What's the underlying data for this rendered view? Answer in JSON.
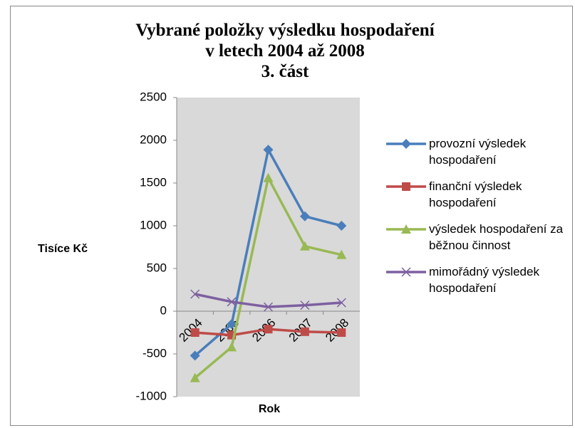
{
  "chart_data": {
    "type": "line",
    "title": "Vybrané položky výsledku hospodaření\nv letech 2004 až 2008\n3. část",
    "y_label": "Tisíce Kč",
    "x_label": "Rok",
    "categories": [
      "2004",
      "2005",
      "2006",
      "2007",
      "2008"
    ],
    "series": [
      {
        "name": "provozní výsledek hospodaření",
        "color": "#4a7ebb",
        "marker": "diamond",
        "values": [
          -520,
          -150,
          1890,
          1110,
          1000
        ]
      },
      {
        "name": "finanční výsledek hospodaření",
        "color": "#be4b48",
        "marker": "square",
        "values": [
          -250,
          -280,
          -210,
          -240,
          -250
        ]
      },
      {
        "name": "výsledek hospodaření za běžnou činnost",
        "color": "#98b954",
        "marker": "triangle",
        "values": [
          -780,
          -420,
          1560,
          760,
          660
        ]
      },
      {
        "name": "mimořádný výsledek hospodaření",
        "color": "#7d60a0",
        "marker": "x",
        "values": [
          200,
          110,
          50,
          70,
          100
        ]
      }
    ],
    "ylim": [
      -1000,
      2500
    ],
    "yticks": [
      -1000,
      -500,
      0,
      500,
      1000,
      1500,
      2000,
      2500
    ],
    "grid": false,
    "legend": "right"
  }
}
